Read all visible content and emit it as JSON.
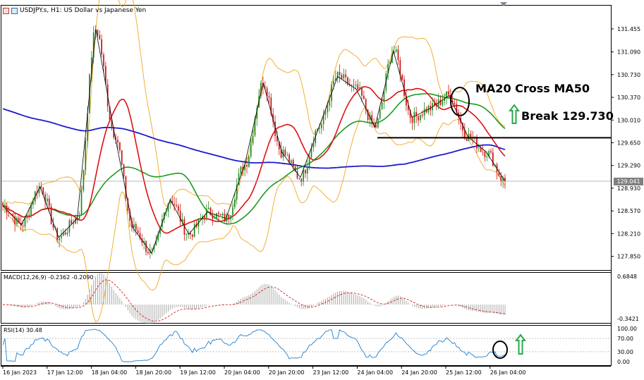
{
  "window": {
    "title": "USDJPY.s, H1:  US Dollar vs Japanese Yen"
  },
  "price_axis": {
    "ticks": [
      "131.455",
      "131.090",
      "130.730",
      "130.370",
      "130.010",
      "129.650",
      "129.290",
      "128.930",
      "128.570",
      "128.210",
      "127.850"
    ],
    "current_price": "129.041"
  },
  "macd": {
    "label": "MACD(12,26,9) -0.2362 -0.2090",
    "top_tick": "0.6848",
    "bottom_tick": "-0.3421"
  },
  "rsi": {
    "label": "RSI(14) 30.48",
    "ticks": [
      "100.00",
      "70.00",
      "30.00",
      "0.00"
    ]
  },
  "time_axis": {
    "labels": [
      "16 Jan 2023",
      "17 Jan 12:00",
      "18 Jan 04:00",
      "18 Jan 20:00",
      "19 Jan 12:00",
      "20 Jan 04:00",
      "20 Jan 20:00",
      "23 Jan 12:00",
      "24 Jan 04:00",
      "24 Jan 20:00",
      "25 Jan 12:00",
      "26 Jan 04:00"
    ]
  },
  "annotations": {
    "cross": "MA20 Cross MA50",
    "break": "Break 129.730"
  },
  "colors": {
    "bull": "#1e8c1e",
    "bear": "#cc1010",
    "ma20": "#e01010",
    "ma50": "#1e9a1e",
    "ma200": "#1a1ad0",
    "bands": "#f0a820",
    "macd_hist": "#a8a8a8",
    "macd_signal": "#d02020",
    "rsi_line": "#2080d0",
    "arrow": "#2aa84a",
    "level_line": "#000000"
  },
  "chart_data": {
    "type": "candlestick",
    "symbol": "USDJPY.s",
    "timeframe": "H1",
    "title": "US Dollar vs Japanese Yen",
    "price_range": [
      127.7,
      131.6
    ],
    "close_path": [
      {
        "t": "16 Jan 2023",
        "price": 128.65
      },
      {
        "t": "17 Jan 00:00",
        "price": 128.35
      },
      {
        "t": "17 Jan 06:00",
        "price": 128.95
      },
      {
        "t": "17 Jan 12:00",
        "price": 128.15
      },
      {
        "t": "17 Jan 20:00",
        "price": 128.45
      },
      {
        "t": "18 Jan 04:00",
        "price": 131.45
      },
      {
        "t": "18 Jan 08:00",
        "price": 129.8
      },
      {
        "t": "18 Jan 12:00",
        "price": 128.3
      },
      {
        "t": "18 Jan 16:00",
        "price": 127.9
      },
      {
        "t": "18 Jan 20:00",
        "price": 128.75
      },
      {
        "t": "19 Jan 04:00",
        "price": 128.2
      },
      {
        "t": "19 Jan 12:00",
        "price": 128.55
      },
      {
        "t": "19 Jan 20:00",
        "price": 128.45
      },
      {
        "t": "20 Jan 00:00",
        "price": 129.3
      },
      {
        "t": "20 Jan 04:00",
        "price": 130.6
      },
      {
        "t": "20 Jan 12:00",
        "price": 129.5
      },
      {
        "t": "20 Jan 20:00",
        "price": 129.1
      },
      {
        "t": "23 Jan 04:00",
        "price": 129.9
      },
      {
        "t": "23 Jan 12:00",
        "price": 130.7
      },
      {
        "t": "23 Jan 20:00",
        "price": 130.5
      },
      {
        "t": "24 Jan 04:00",
        "price": 129.9
      },
      {
        "t": "24 Jan 08:00",
        "price": 131.1
      },
      {
        "t": "24 Jan 12:00",
        "price": 130.05
      },
      {
        "t": "24 Jan 20:00",
        "price": 130.2
      },
      {
        "t": "25 Jan 04:00",
        "price": 130.4
      },
      {
        "t": "25 Jan 08:00",
        "price": 129.75
      },
      {
        "t": "25 Jan 16:00",
        "price": 129.5
      },
      {
        "t": "26 Jan 04:00",
        "price": 129.04
      }
    ],
    "moving_averages": [
      {
        "name": "MA20",
        "period": 20
      },
      {
        "name": "MA50",
        "period": 50
      },
      {
        "name": "MA200",
        "period": 200
      }
    ],
    "support_level": 129.73,
    "current_price": 129.041,
    "indicators": {
      "macd": {
        "params": "12,26,9",
        "main": -0.2362,
        "signal": -0.209,
        "range": [
          -0.3421,
          0.6848
        ]
      },
      "rsi": {
        "period": 14,
        "value": 30.48,
        "levels": [
          70,
          30
        ],
        "range": [
          0,
          100
        ]
      }
    }
  }
}
